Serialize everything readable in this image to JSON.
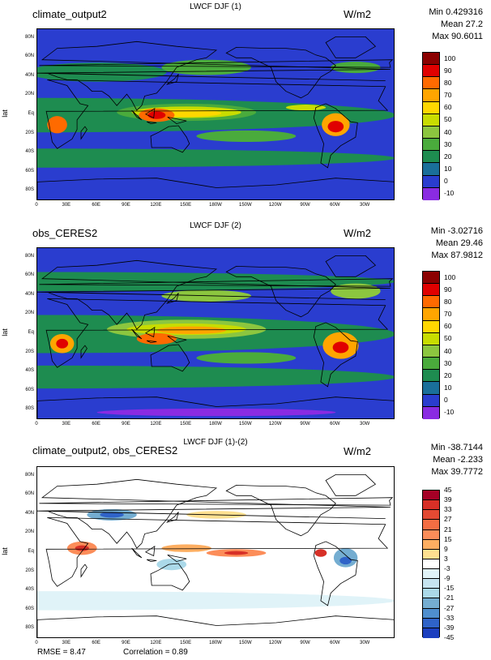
{
  "colors": {
    "ocean_default": "#2a3dcf",
    "land_line": "#000000"
  },
  "lat_ticks": [
    "80N",
    "60N",
    "40N",
    "20N",
    "Eq",
    "20S",
    "40S",
    "60S",
    "80S"
  ],
  "lon_ticks": [
    "0",
    "30E",
    "60E",
    "90E",
    "120E",
    "150E",
    "180W",
    "150W",
    "120W",
    "90W",
    "60W",
    "30W"
  ],
  "axis_label_lat": "lat",
  "chart_data": [
    {
      "type": "heatmap",
      "title_left": "climate_output2",
      "title_center": "LWCF DJF (1)",
      "units": "W/m2",
      "stats": {
        "min": "Min 0.429316",
        "mean": "Mean 27.2",
        "max": "Max 90.6011"
      },
      "colorbar_levels": [
        "100",
        "90",
        "80",
        "70",
        "60",
        "50",
        "40",
        "30",
        "20",
        "10",
        "0",
        "-10"
      ],
      "colorbar_colors": [
        "#8b0000",
        "#e00000",
        "#ff6a00",
        "#ffa500",
        "#ffd700",
        "#c8dc00",
        "#8cc63f",
        "#4aab3c",
        "#1e8c50",
        "#1a6f9a",
        "#2a3dcf",
        "#8a2be2"
      ],
      "base_color": "#2a3dcf",
      "blobs": [
        {
          "lon": 0,
          "lat": 0,
          "rx": 360,
          "ry": 18,
          "c": "#1e8c50"
        },
        {
          "lon": 0,
          "lat": -45,
          "rx": 360,
          "ry": 10,
          "c": "#1e8c50"
        },
        {
          "lon": 60,
          "lat": 45,
          "rx": 70,
          "ry": 10,
          "c": "#1e8c50"
        },
        {
          "lon": 170,
          "lat": 50,
          "rx": 45,
          "ry": 8,
          "c": "#4aab3c"
        },
        {
          "lon": 320,
          "lat": 50,
          "rx": 25,
          "ry": 6,
          "c": "#4aab3c"
        },
        {
          "lon": 150,
          "lat": 3,
          "rx": 70,
          "ry": 9,
          "c": "#4aab3c"
        },
        {
          "lon": 150,
          "lat": 3,
          "rx": 55,
          "ry": 6,
          "c": "#c8dc00"
        },
        {
          "lon": 145,
          "lat": 2,
          "rx": 40,
          "ry": 4,
          "c": "#ffd700"
        },
        {
          "lon": 120,
          "lat": 0,
          "rx": 18,
          "ry": 7,
          "c": "#ff6a00"
        },
        {
          "lon": 120,
          "lat": 0,
          "rx": 9,
          "ry": 4,
          "c": "#e00000"
        },
        {
          "lon": 20,
          "lat": -10,
          "rx": 10,
          "ry": 9,
          "c": "#ff6a00"
        },
        {
          "lon": 300,
          "lat": -10,
          "rx": 14,
          "ry": 12,
          "c": "#ffa500"
        },
        {
          "lon": 300,
          "lat": -12,
          "rx": 8,
          "ry": 6,
          "c": "#e00000"
        },
        {
          "lon": 270,
          "lat": 8,
          "rx": 20,
          "ry": 3,
          "c": "#c8dc00"
        },
        {
          "lon": 210,
          "lat": -22,
          "rx": 50,
          "ry": 6,
          "c": "#4aab3c"
        }
      ]
    },
    {
      "type": "heatmap",
      "title_left": "obs_CERES2",
      "title_center": "LWCF DJF (2)",
      "units": "W/m2",
      "stats": {
        "min": "Min -3.02716",
        "mean": "Mean 29.46",
        "max": "Max 87.9812"
      },
      "colorbar_levels": [
        "100",
        "90",
        "80",
        "70",
        "60",
        "50",
        "40",
        "30",
        "20",
        "10",
        "0",
        "-10"
      ],
      "colorbar_colors": [
        "#8b0000",
        "#e00000",
        "#ff6a00",
        "#ffa500",
        "#ffd700",
        "#c8dc00",
        "#8cc63f",
        "#4aab3c",
        "#1e8c50",
        "#1a6f9a",
        "#2a3dcf",
        "#8a2be2"
      ],
      "base_color": "#2a3dcf",
      "blobs": [
        {
          "lon": 0,
          "lat": 0,
          "rx": 360,
          "ry": 20,
          "c": "#1e8c50"
        },
        {
          "lon": 0,
          "lat": -45,
          "rx": 360,
          "ry": 12,
          "c": "#1e8c50"
        },
        {
          "lon": 0,
          "lat": 55,
          "rx": 360,
          "ry": 10,
          "c": "#1e8c50"
        },
        {
          "lon": 180,
          "lat": -82,
          "rx": 120,
          "ry": 4,
          "c": "#8a2be2"
        },
        {
          "lon": 170,
          "lat": 40,
          "rx": 45,
          "ry": 6,
          "c": "#8cc63f"
        },
        {
          "lon": 150,
          "lat": 5,
          "rx": 80,
          "ry": 10,
          "c": "#8cc63f"
        },
        {
          "lon": 150,
          "lat": 5,
          "rx": 60,
          "ry": 6,
          "c": "#c8dc00"
        },
        {
          "lon": 155,
          "lat": 4,
          "rx": 35,
          "ry": 4,
          "c": "#ffa500"
        },
        {
          "lon": 120,
          "lat": -5,
          "rx": 20,
          "ry": 6,
          "c": "#ff6a00"
        },
        {
          "lon": 25,
          "lat": -10,
          "rx": 12,
          "ry": 10,
          "c": "#ffa500"
        },
        {
          "lon": 25,
          "lat": -10,
          "rx": 6,
          "ry": 5,
          "c": "#e00000"
        },
        {
          "lon": 305,
          "lat": -12,
          "rx": 18,
          "ry": 14,
          "c": "#ffa500"
        },
        {
          "lon": 305,
          "lat": -14,
          "rx": 8,
          "ry": 6,
          "c": "#e00000"
        },
        {
          "lon": 320,
          "lat": 45,
          "rx": 25,
          "ry": 8,
          "c": "#8cc63f"
        },
        {
          "lon": 210,
          "lat": -25,
          "rx": 50,
          "ry": 6,
          "c": "#4aab3c"
        }
      ]
    },
    {
      "type": "heatmap",
      "title_left": "climate_output2, obs_CERES2",
      "title_center": "LWCF DJF (1)-(2)",
      "units": "W/m2",
      "stats": {
        "min": "Min -38.7144",
        "mean": "Mean -2.233",
        "max": "Max 39.7772"
      },
      "colorbar_levels": [
        "45",
        "39",
        "33",
        "27",
        "21",
        "15",
        "9",
        "3",
        "-3",
        "-9",
        "-15",
        "-21",
        "-27",
        "-33",
        "-39",
        "-45"
      ],
      "colorbar_colors": [
        "#a50026",
        "#d73027",
        "#e34a33",
        "#f46d43",
        "#fc8d59",
        "#fdae61",
        "#fee090",
        "#ffffff",
        "#e0f3f8",
        "#c6e4f0",
        "#abd9e9",
        "#74add1",
        "#4f8fcf",
        "#2f63c8",
        "#1c3fbf"
      ],
      "base_color": "#ffffff",
      "blobs": [
        {
          "lon": 0,
          "lat": -50,
          "rx": 360,
          "ry": 10,
          "c": "#e0f3f8"
        },
        {
          "lon": 75,
          "lat": 40,
          "rx": 25,
          "ry": 6,
          "c": "#74add1"
        },
        {
          "lon": 75,
          "lat": 40,
          "rx": 12,
          "ry": 3,
          "c": "#2f63c8"
        },
        {
          "lon": 45,
          "lat": 5,
          "rx": 15,
          "ry": 7,
          "c": "#fc8d59"
        },
        {
          "lon": 45,
          "lat": 5,
          "rx": 7,
          "ry": 3,
          "c": "#d73027"
        },
        {
          "lon": 150,
          "lat": 5,
          "rx": 25,
          "ry": 4,
          "c": "#fdae61"
        },
        {
          "lon": 135,
          "lat": -12,
          "rx": 15,
          "ry": 6,
          "c": "#abd9e9"
        },
        {
          "lon": 200,
          "lat": 0,
          "rx": 30,
          "ry": 4,
          "c": "#fc8d59"
        },
        {
          "lon": 200,
          "lat": 0,
          "rx": 12,
          "ry": 2,
          "c": "#d73027"
        },
        {
          "lon": 310,
          "lat": -5,
          "rx": 12,
          "ry": 10,
          "c": "#74add1"
        },
        {
          "lon": 310,
          "lat": -8,
          "rx": 6,
          "ry": 4,
          "c": "#2f63c8"
        },
        {
          "lon": 285,
          "lat": 0,
          "rx": 6,
          "ry": 4,
          "c": "#d73027"
        },
        {
          "lon": 180,
          "lat": 40,
          "rx": 30,
          "ry": 4,
          "c": "#fee090"
        }
      ]
    }
  ],
  "bottom": {
    "rmse": "RMSE = 8.47",
    "correlation": "Correlation = 0.89"
  }
}
